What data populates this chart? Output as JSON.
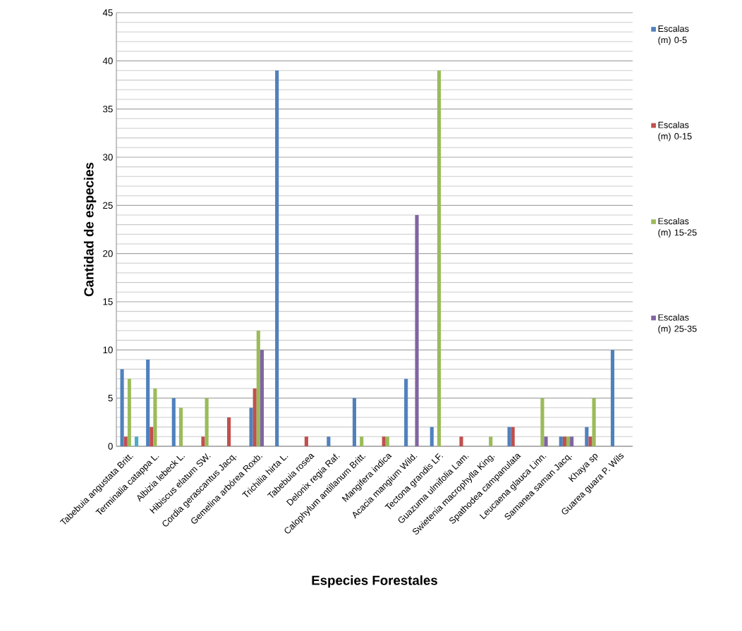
{
  "chart_data": {
    "type": "bar",
    "xlabel": "Especies Forestales",
    "ylabel": "Cantidad de especies",
    "categories": [
      "Tabebuia angustata Britt.",
      "Terminalia catappa L.",
      "Albizia lebeck L.",
      "Hibiscus elatum SW.",
      "Cordia gerascantus Jacq.",
      "Gemelina arbórea Roxb.",
      "Trichilia hirta L.",
      "Tabebuia rosea",
      "Delonix regia Raf.",
      "Calophylum antillanum Britt.",
      "Mangifera indica",
      "Acacia mangium Wild.",
      "Tectona grandis LF.",
      "Guazuma ulmifolia Lam.",
      "Swietenia macrophylla King.",
      "Spathodea campanulata",
      "Leucaena glauca Linn.",
      "Samanea saman Jacq.",
      "Khaya sp",
      "Guarea guara P. Wils"
    ],
    "series": [
      {
        "name": "Escalas (m) 0-5",
        "color": "#4f81bd",
        "values": [
          8,
          9,
          5,
          0,
          0,
          4,
          39,
          0,
          1,
          5,
          0,
          7,
          2,
          0,
          0,
          2,
          0,
          1,
          2,
          10
        ]
      },
      {
        "name": "Escalas (m) 0-15",
        "color": "#c0504d",
        "values": [
          1,
          2,
          0,
          1,
          3,
          6,
          0,
          1,
          0,
          0,
          1,
          0,
          0,
          1,
          0,
          2,
          0,
          1,
          1,
          0
        ]
      },
      {
        "name": "Escalas (m) 15-25",
        "color": "#9bbb59",
        "values": [
          7,
          6,
          4,
          5,
          0,
          12,
          0,
          0,
          0,
          1,
          1,
          0,
          39,
          0,
          1,
          0,
          5,
          1,
          5,
          0
        ]
      },
      {
        "name": "Escalas (m) 25-35",
        "color": "#8064a2",
        "values": [
          0,
          0,
          0,
          0,
          0,
          10,
          0,
          0,
          0,
          0,
          0,
          24,
          0,
          0,
          0,
          0,
          1,
          1,
          0,
          0
        ]
      },
      {
        "color": "#4bacc6",
        "values": [
          1,
          0,
          0,
          0,
          0,
          0,
          0,
          0,
          0,
          0,
          0,
          0,
          0,
          0,
          0,
          0,
          0,
          0,
          0,
          0
        ]
      }
    ],
    "ylim": [
      0,
      45
    ],
    "yticks": [
      0,
      5,
      10,
      15,
      20,
      25,
      30,
      35,
      40,
      45
    ],
    "grid": "y",
    "legend": "right"
  }
}
